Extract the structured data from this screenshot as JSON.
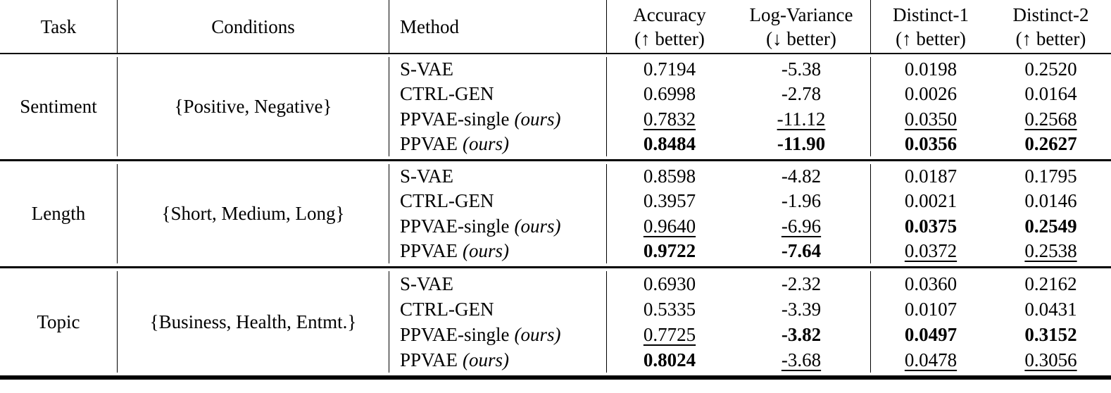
{
  "header": {
    "task": "Task",
    "conditions": "Conditions",
    "method": "Method",
    "metrics": [
      {
        "name": "Accuracy",
        "better": "(↑ better)"
      },
      {
        "name": "Log-Variance",
        "better": "(↓ better)"
      },
      {
        "name": "Distinct-1",
        "better": "(↑ better)"
      },
      {
        "name": "Distinct-2",
        "better": "(↑ better)"
      }
    ]
  },
  "blocks": [
    {
      "task": "Sentiment",
      "conditions": "{Positive, Negative}",
      "rows": [
        {
          "method": "S-VAE",
          "ours": "",
          "values": [
            {
              "v": "0.7194",
              "s": "plain"
            },
            {
              "v": "-5.38",
              "s": "plain"
            },
            {
              "v": "0.0198",
              "s": "plain"
            },
            {
              "v": "0.2520",
              "s": "plain"
            }
          ]
        },
        {
          "method": "CTRL-GEN",
          "ours": "",
          "values": [
            {
              "v": "0.6998",
              "s": "plain"
            },
            {
              "v": "-2.78",
              "s": "plain"
            },
            {
              "v": "0.0026",
              "s": "plain"
            },
            {
              "v": "0.0164",
              "s": "plain"
            }
          ]
        },
        {
          "method": "PPVAE-single",
          "ours": "(ours)",
          "values": [
            {
              "v": "0.7832",
              "s": "underline"
            },
            {
              "v": "-11.12",
              "s": "underline"
            },
            {
              "v": "0.0350",
              "s": "underline"
            },
            {
              "v": "0.2568",
              "s": "underline"
            }
          ]
        },
        {
          "method": "PPVAE",
          "ours": "(ours)",
          "values": [
            {
              "v": "0.8484",
              "s": "bold"
            },
            {
              "v": "-11.90",
              "s": "bold"
            },
            {
              "v": "0.0356",
              "s": "bold"
            },
            {
              "v": "0.2627",
              "s": "bold"
            }
          ]
        }
      ]
    },
    {
      "task": "Length",
      "conditions": "{Short, Medium, Long}",
      "rows": [
        {
          "method": "S-VAE",
          "ours": "",
          "values": [
            {
              "v": "0.8598",
              "s": "plain"
            },
            {
              "v": "-4.82",
              "s": "plain"
            },
            {
              "v": "0.0187",
              "s": "plain"
            },
            {
              "v": "0.1795",
              "s": "plain"
            }
          ]
        },
        {
          "method": "CTRL-GEN",
          "ours": "",
          "values": [
            {
              "v": "0.3957",
              "s": "plain"
            },
            {
              "v": "-1.96",
              "s": "plain"
            },
            {
              "v": "0.0021",
              "s": "plain"
            },
            {
              "v": "0.0146",
              "s": "plain"
            }
          ]
        },
        {
          "method": "PPVAE-single",
          "ours": "(ours)",
          "values": [
            {
              "v": "0.9640",
              "s": "underline"
            },
            {
              "v": "-6.96",
              "s": "underline"
            },
            {
              "v": "0.0375",
              "s": "bold"
            },
            {
              "v": "0.2549",
              "s": "bold"
            }
          ]
        },
        {
          "method": "PPVAE",
          "ours": "(ours)",
          "values": [
            {
              "v": "0.9722",
              "s": "bold"
            },
            {
              "v": "-7.64",
              "s": "bold"
            },
            {
              "v": "0.0372",
              "s": "underline"
            },
            {
              "v": "0.2538",
              "s": "underline"
            }
          ]
        }
      ]
    },
    {
      "task": "Topic",
      "conditions": "{Business, Health, Entmt.}",
      "rows": [
        {
          "method": "S-VAE",
          "ours": "",
          "values": [
            {
              "v": "0.6930",
              "s": "plain"
            },
            {
              "v": "-2.32",
              "s": "plain"
            },
            {
              "v": "0.0360",
              "s": "plain"
            },
            {
              "v": "0.2162",
              "s": "plain"
            }
          ]
        },
        {
          "method": "CTRL-GEN",
          "ours": "",
          "values": [
            {
              "v": "0.5335",
              "s": "plain"
            },
            {
              "v": "-3.39",
              "s": "plain"
            },
            {
              "v": "0.0107",
              "s": "plain"
            },
            {
              "v": "0.0431",
              "s": "plain"
            }
          ]
        },
        {
          "method": "PPVAE-single",
          "ours": "(ours)",
          "values": [
            {
              "v": "0.7725",
              "s": "underline"
            },
            {
              "v": "-3.82",
              "s": "bold"
            },
            {
              "v": "0.0497",
              "s": "bold"
            },
            {
              "v": "0.3152",
              "s": "bold"
            }
          ]
        },
        {
          "method": "PPVAE",
          "ours": "(ours)",
          "values": [
            {
              "v": "0.8024",
              "s": "bold"
            },
            {
              "v": "-3.68",
              "s": "underline"
            },
            {
              "v": "0.0478",
              "s": "underline"
            },
            {
              "v": "0.3056",
              "s": "underline"
            }
          ]
        }
      ]
    }
  ]
}
